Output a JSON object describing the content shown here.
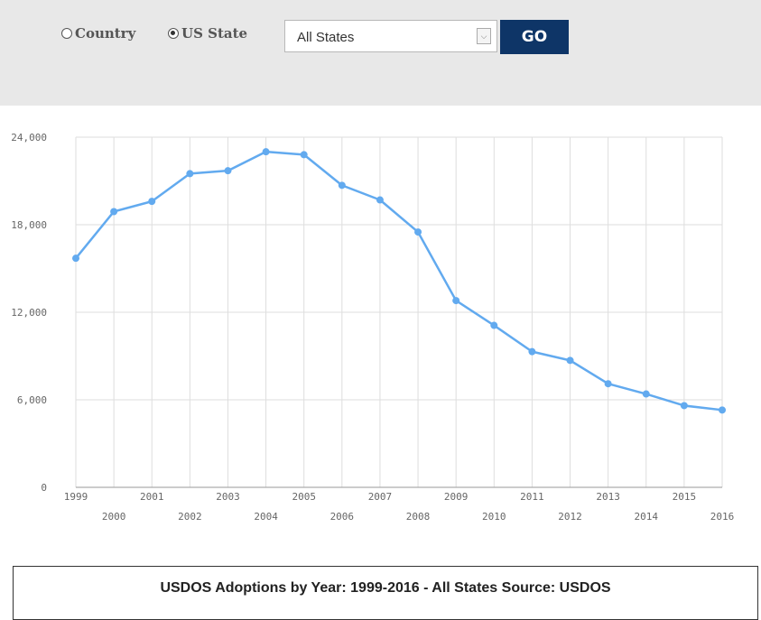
{
  "filters": {
    "options": [
      {
        "label": "Country",
        "selected": false
      },
      {
        "label": "US State",
        "selected": true
      }
    ],
    "select_value": "All States",
    "go_label": "GO"
  },
  "chart_data": {
    "type": "line",
    "title": "",
    "xlabel": "",
    "ylabel": "",
    "x": [
      "1999",
      "2000",
      "2001",
      "2002",
      "2003",
      "2004",
      "2005",
      "2006",
      "2007",
      "2008",
      "2009",
      "2010",
      "2011",
      "2012",
      "2013",
      "2014",
      "2015",
      "2016"
    ],
    "series": [
      {
        "values": [
          15700,
          18900,
          19600,
          21500,
          21700,
          23000,
          22800,
          20700,
          19700,
          17500,
          12800,
          11100,
          9300,
          8700,
          7100,
          6400,
          5600,
          5300
        ]
      }
    ],
    "ylim": [
      0,
      24000
    ],
    "yticks": [
      0,
      6000,
      12000,
      18000,
      24000
    ],
    "ytick_labels": [
      "0",
      "6,000",
      "12,000",
      "18,000",
      "24,000"
    ],
    "grid": true,
    "line_color": "#62aaef",
    "legend": "none"
  },
  "caption": "USDOS Adoptions by Year: 1999-2016 - All States Source: USDOS"
}
